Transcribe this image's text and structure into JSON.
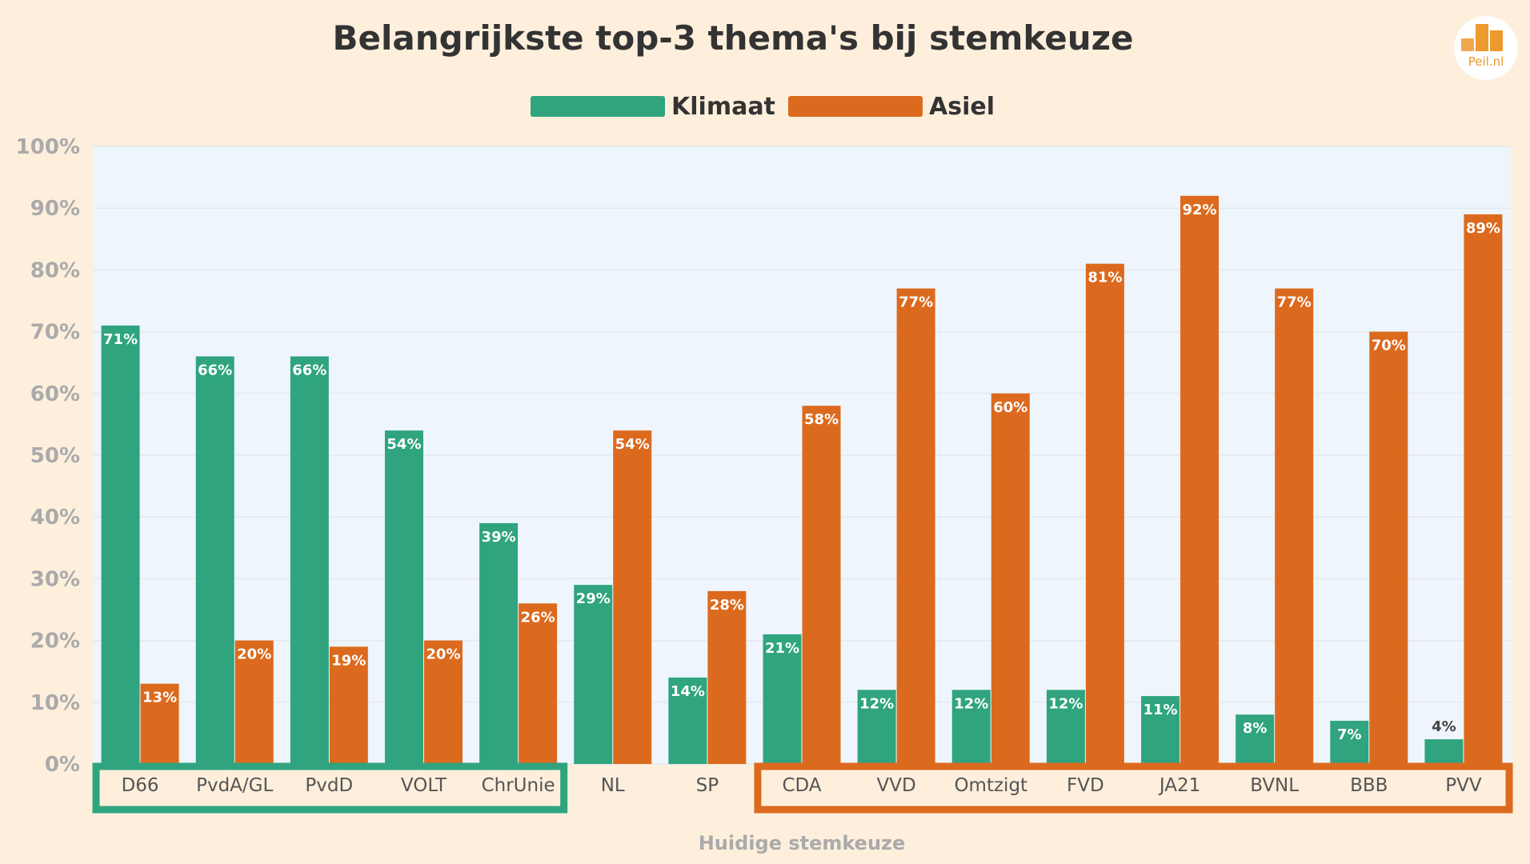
{
  "logo_text": "Peil.nl",
  "colors": {
    "klimaat": "#2fa47f",
    "asiel": "#dc6a1e",
    "background": "#fdefdc",
    "plot_background": "#eff5fc",
    "data_label": "#ffffff"
  },
  "chart_data": {
    "type": "bar",
    "title": "Belangrijkste top-3 thema's bij stemkeuze",
    "xlabel": "Huidige stemkeuze",
    "ylabel": "",
    "ylim": [
      0,
      100
    ],
    "yticks": [
      "0%",
      "10%",
      "20%",
      "30%",
      "40%",
      "50%",
      "60%",
      "70%",
      "80%",
      "90%",
      "100%"
    ],
    "grid": true,
    "legend": "top-center",
    "categories": [
      "D66",
      "PvdA/GL",
      "PvdD",
      "VOLT",
      "ChrUnie",
      "NL",
      "SP",
      "CDA",
      "VVD",
      "Omtzigt",
      "FVD",
      "JA21",
      "BVNL",
      "BBB",
      "PVV"
    ],
    "series": [
      {
        "name": "Klimaat",
        "values": [
          71,
          66,
          66,
          54,
          39,
          29,
          14,
          21,
          12,
          12,
          12,
          11,
          8,
          7,
          4
        ]
      },
      {
        "name": "Asiel",
        "values": [
          13,
          20,
          19,
          20,
          26,
          54,
          28,
          58,
          77,
          60,
          81,
          92,
          77,
          70,
          89
        ]
      }
    ],
    "highlight_groups": [
      {
        "color": "klimaat",
        "categories": [
          "D66",
          "PvdA/GL",
          "PvdD",
          "VOLT",
          "ChrUnie"
        ]
      },
      {
        "color": "asiel",
        "categories": [
          "CDA",
          "VVD",
          "Omtzigt",
          "FVD",
          "JA21",
          "BVNL",
          "BBB",
          "PVV"
        ]
      }
    ]
  }
}
